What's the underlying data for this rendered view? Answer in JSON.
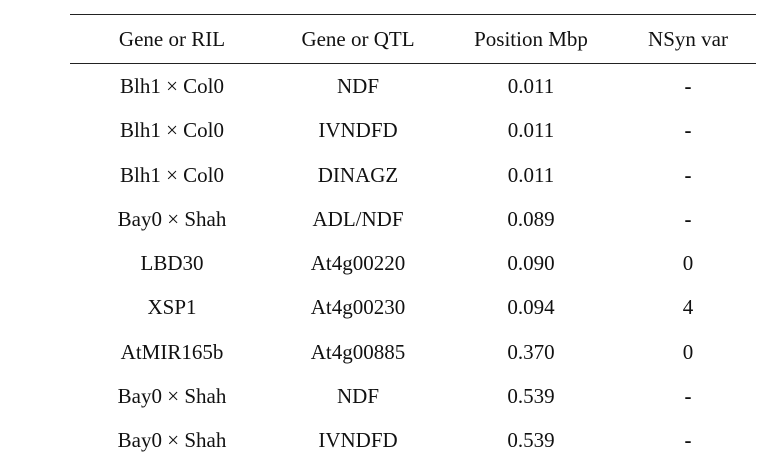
{
  "table": {
    "headers": [
      "Gene or RIL",
      "Gene or QTL",
      "Position Mbp",
      "NSyn var"
    ],
    "rows": [
      [
        "Blh1 × Col0",
        "NDF",
        "0.011",
        "-"
      ],
      [
        "Blh1 × Col0",
        "IVNDFD",
        "0.011",
        "-"
      ],
      [
        "Blh1 × Col0",
        "DINAGZ",
        "0.011",
        "-"
      ],
      [
        "Bay0 × Shah",
        "ADL/NDF",
        "0.089",
        "-"
      ],
      [
        "LBD30",
        "At4g00220",
        "0.090",
        "0"
      ],
      [
        "XSP1",
        "At4g00230",
        "0.094",
        "4"
      ],
      [
        "AtMIR165b",
        "At4g00885",
        "0.370",
        "0"
      ],
      [
        "Bay0 × Shah",
        "NDF",
        "0.539",
        "-"
      ],
      [
        "Bay0 × Shah",
        "IVNDFD",
        "0.539",
        "-"
      ]
    ]
  }
}
